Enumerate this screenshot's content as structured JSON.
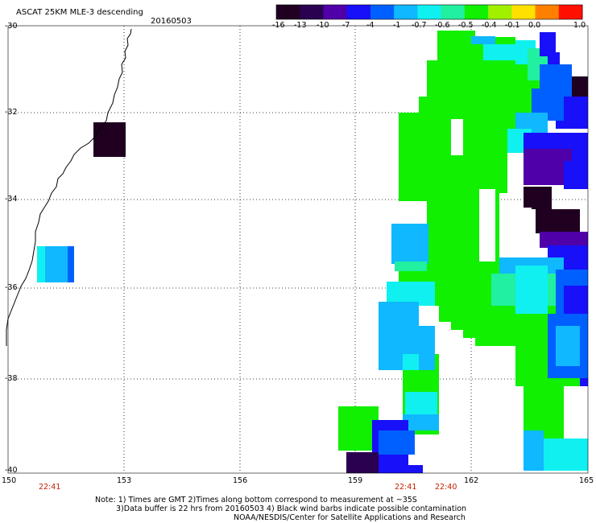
{
  "header": {
    "title": "ASCAT 25KM MLE-3 descending",
    "date": "20160503"
  },
  "colorbar": {
    "labels": [
      "-16",
      "-13",
      "-10",
      "-7",
      "-4",
      "-1",
      "-0.7",
      "-0.6",
      "-0.5",
      "-0.4",
      "-0.1",
      "0.0",
      "1.0"
    ],
    "colors": [
      "#200020",
      "#2a0050",
      "#5000a8",
      "#1810f8",
      "#0060ff",
      "#10b8ff",
      "#10f0f0",
      "#20f0a0",
      "#10f000",
      "#a0f000",
      "#ffe000",
      "#ff8000",
      "#ff1000"
    ]
  },
  "axes": {
    "lat_labels": [
      "-30",
      "-32",
      "-34",
      "-36",
      "-38",
      "-40"
    ],
    "lon_labels": [
      "150",
      "153",
      "156",
      "159",
      "162",
      "165"
    ]
  },
  "times": [
    "22:41",
    "22:41",
    "22:40"
  ],
  "notes": [
    "Note: 1) Times are GMT 2)Times along bottom correspond to measurement at ~35S",
    "3)Data buffer is 22 hrs from 20160503 4) Black wind barbs indicate possible contamination",
    "NOAA/NESDIS/Center for Satellite Applications and Research"
  ]
}
